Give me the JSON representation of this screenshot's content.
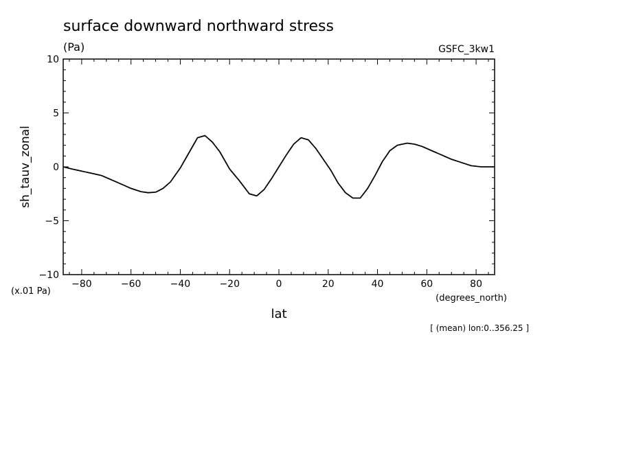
{
  "chart_data": {
    "type": "line",
    "title": "surface downward northward stress",
    "units_label": "(Pa)",
    "model_label": "GSFC_3kw1",
    "ylabel": "sh_tauv_zonal",
    "y_scale_label": "(x.01 Pa)",
    "xlabel": "lat",
    "x_units_label": "(degrees_north)",
    "footnote": "[ (mean) lon:0..356.25 ]",
    "xlim": [
      -87.5,
      87.5
    ],
    "ylim": [
      -10,
      10
    ],
    "x_ticks": [
      -80,
      -60,
      -40,
      -20,
      0,
      20,
      40,
      60,
      80
    ],
    "x_tick_labels": [
      "−80",
      "−60",
      "−40",
      "−20",
      "0",
      "20",
      "40",
      "60",
      "80"
    ],
    "y_ticks": [
      10,
      5,
      0,
      -5,
      -10
    ],
    "y_tick_labels": [
      "10",
      "5",
      "0",
      "−5",
      "−10"
    ],
    "grid": false,
    "line_color": "#000000",
    "series": [
      {
        "x": [
          -87.5,
          -84,
          -80,
          -76,
          -72,
          -68,
          -64,
          -60,
          -56,
          -53,
          -50,
          -47,
          -44,
          -40,
          -36,
          -33,
          -30,
          -27,
          -24,
          -20,
          -16,
          -12,
          -9,
          -6,
          -3,
          0,
          3,
          6,
          9,
          12,
          15,
          18,
          21,
          24,
          27,
          30,
          33,
          36,
          39,
          42,
          45,
          48,
          52,
          55,
          58,
          62,
          66,
          70,
          74,
          78,
          82,
          87.5
        ],
        "y": [
          0.0,
          -0.2,
          -0.4,
          -0.6,
          -0.8,
          -1.2,
          -1.6,
          -2.0,
          -2.3,
          -2.4,
          -2.35,
          -2.0,
          -1.4,
          -0.1,
          1.5,
          2.7,
          2.9,
          2.3,
          1.4,
          -0.2,
          -1.3,
          -2.5,
          -2.7,
          -2.1,
          -1.1,
          0.0,
          1.1,
          2.1,
          2.7,
          2.5,
          1.7,
          0.7,
          -0.3,
          -1.5,
          -2.4,
          -2.9,
          -2.9,
          -2.0,
          -0.8,
          0.5,
          1.5,
          2.0,
          2.2,
          2.1,
          1.9,
          1.5,
          1.1,
          0.7,
          0.4,
          0.1,
          0.0,
          0.0
        ]
      }
    ]
  }
}
